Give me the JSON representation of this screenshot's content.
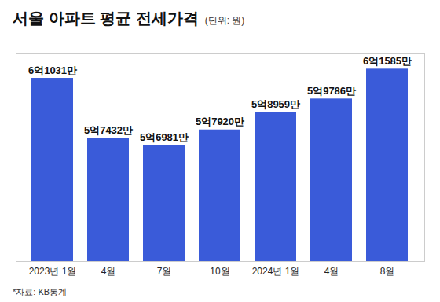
{
  "chart_data": {
    "type": "bar",
    "title": "서울 아파트 평균 전세가격",
    "subtitle": "(단위: 원)",
    "categories": [
      "2023년 1월",
      "4월",
      "7월",
      "10월",
      "2024년 1월",
      "4월",
      "8월"
    ],
    "values": [
      610310000,
      574320000,
      569810000,
      579200000,
      589590000,
      597860000,
      615850000
    ],
    "value_labels": [
      "6억1031만",
      "5억7432만",
      "5억6981만",
      "5억7920만",
      "5억8959만",
      "5억9786만",
      "6억1585만"
    ],
    "data_labels": true,
    "color": "#3a5bd9",
    "ylim": [
      500000000,
      625000000
    ],
    "grid": false,
    "tick_labels": "x",
    "annotations": [
      "*자료: KB통계"
    ]
  }
}
